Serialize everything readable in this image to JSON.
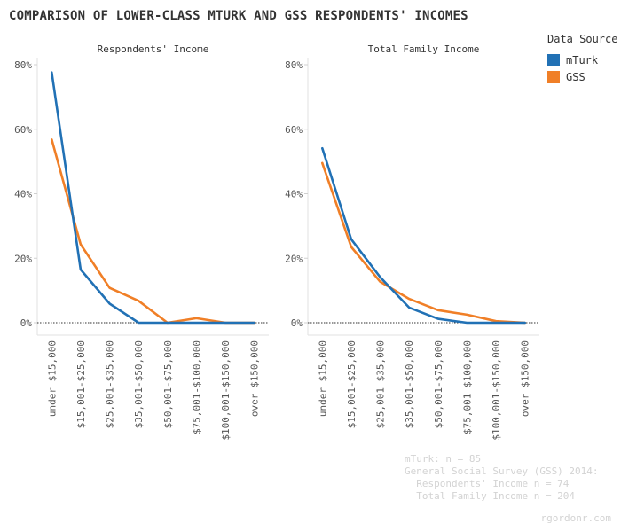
{
  "title": "COMPARISON OF LOWER-CLASS MTURK AND GSS RESPONDENTS' INCOMES",
  "legend": {
    "title": "Data Source",
    "items": [
      {
        "label": "mTurk",
        "color": "#2171b5"
      },
      {
        "label": "GSS",
        "color": "#f07f27"
      }
    ]
  },
  "chart_data": [
    {
      "type": "line",
      "title": "Respondents' Income",
      "categories": [
        "under $15,000",
        "$15,001-$25,000",
        "$25,001-$35,000",
        "$35,001-$50,000",
        "$50,001-$75,000",
        "$75,001-$100,000",
        "$100,001-$150,000",
        "over $150,000"
      ],
      "y_ticks": [
        "0%",
        "20%",
        "40%",
        "60%",
        "80%"
      ],
      "ylim": [
        0,
        80
      ],
      "series": [
        {
          "name": "mTurk",
          "color": "#2171b5",
          "values": [
            77.6,
            16.5,
            5.9,
            0,
            0,
            0,
            0,
            0
          ]
        },
        {
          "name": "GSS",
          "color": "#f07f27",
          "values": [
            56.8,
            24.3,
            10.8,
            6.8,
            0,
            1.4,
            0,
            0
          ]
        }
      ]
    },
    {
      "type": "line",
      "title": "Total Family Income",
      "categories": [
        "under $15,000",
        "$15,001-$25,000",
        "$25,001-$35,000",
        "$35,001-$50,000",
        "$50,001-$75,000",
        "$75,001-$100,000",
        "$100,001-$150,000",
        "over $150,000"
      ],
      "y_ticks": [
        "0%",
        "20%",
        "40%",
        "60%",
        "80%"
      ],
      "ylim": [
        0,
        80
      ],
      "series": [
        {
          "name": "mTurk",
          "color": "#2171b5",
          "values": [
            54.1,
            25.9,
            14.1,
            4.7,
            1.2,
            0,
            0,
            0
          ]
        },
        {
          "name": "GSS",
          "color": "#f07f27",
          "values": [
            49.5,
            23.5,
            12.7,
            7.4,
            3.9,
            2.5,
            0.5,
            0
          ]
        }
      ]
    }
  ],
  "notes": [
    "mTurk: n = 85",
    "General Social Survey (GSS) 2014:",
    "  Respondents' Income n = 74",
    "  Total Family Income n = 204"
  ],
  "credit": "rgordonr.com"
}
